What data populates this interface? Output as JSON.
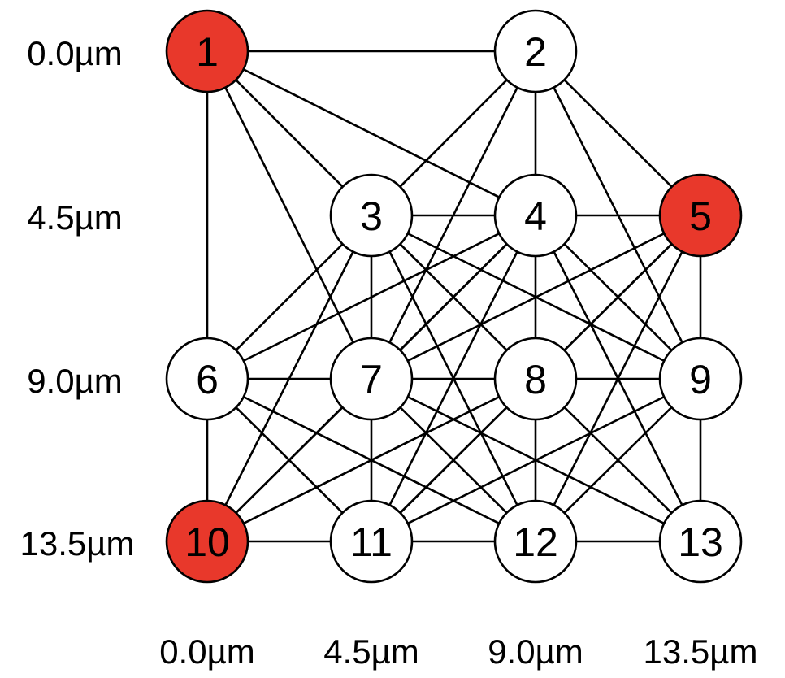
{
  "colors": {
    "highlight": "#e8382b",
    "normal": "#ffffff",
    "stroke": "#000000"
  },
  "grid": {
    "x_um": [
      0.0,
      4.5,
      9.0,
      13.5
    ],
    "y_um": [
      0.0,
      4.5,
      9.0,
      13.5
    ]
  },
  "labels": {
    "x_axis": [
      "0.0µm",
      "4.5µm",
      "9.0µm",
      "13.5µm"
    ],
    "y_axis": [
      "0.0µm",
      "4.5µm",
      "9.0µm",
      "13.5µm"
    ]
  },
  "nodes": [
    {
      "id": "1",
      "label": "1",
      "col": 0,
      "row": 0,
      "highlighted": true
    },
    {
      "id": "2",
      "label": "2",
      "col": 2,
      "row": 0,
      "highlighted": false
    },
    {
      "id": "3",
      "label": "3",
      "col": 1,
      "row": 1,
      "highlighted": false
    },
    {
      "id": "4",
      "label": "4",
      "col": 2,
      "row": 1,
      "highlighted": false
    },
    {
      "id": "5",
      "label": "5",
      "col": 3,
      "row": 1,
      "highlighted": true
    },
    {
      "id": "6",
      "label": "6",
      "col": 0,
      "row": 2,
      "highlighted": false
    },
    {
      "id": "7",
      "label": "7",
      "col": 1,
      "row": 2,
      "highlighted": false
    },
    {
      "id": "8",
      "label": "8",
      "col": 2,
      "row": 2,
      "highlighted": false
    },
    {
      "id": "9",
      "label": "9",
      "col": 3,
      "row": 2,
      "highlighted": false
    },
    {
      "id": "10",
      "label": "10",
      "col": 0,
      "row": 3,
      "highlighted": true
    },
    {
      "id": "11",
      "label": "11",
      "col": 1,
      "row": 3,
      "highlighted": false
    },
    {
      "id": "12",
      "label": "12",
      "col": 2,
      "row": 3,
      "highlighted": false
    },
    {
      "id": "13",
      "label": "13",
      "col": 3,
      "row": 3,
      "highlighted": false
    }
  ],
  "edges": [
    [
      "1",
      "2"
    ],
    [
      "1",
      "3"
    ],
    [
      "1",
      "4"
    ],
    [
      "1",
      "6"
    ],
    [
      "1",
      "7"
    ],
    [
      "2",
      "3"
    ],
    [
      "2",
      "4"
    ],
    [
      "2",
      "5"
    ],
    [
      "2",
      "7"
    ],
    [
      "2",
      "9"
    ],
    [
      "3",
      "4"
    ],
    [
      "3",
      "6"
    ],
    [
      "3",
      "7"
    ],
    [
      "3",
      "8"
    ],
    [
      "3",
      "9"
    ],
    [
      "3",
      "10"
    ],
    [
      "3",
      "12"
    ],
    [
      "4",
      "5"
    ],
    [
      "4",
      "6"
    ],
    [
      "4",
      "7"
    ],
    [
      "4",
      "8"
    ],
    [
      "4",
      "9"
    ],
    [
      "4",
      "10"
    ],
    [
      "4",
      "11"
    ],
    [
      "4",
      "13"
    ],
    [
      "5",
      "7"
    ],
    [
      "5",
      "8"
    ],
    [
      "5",
      "9"
    ],
    [
      "5",
      "11"
    ],
    [
      "5",
      "12"
    ],
    [
      "6",
      "7"
    ],
    [
      "6",
      "10"
    ],
    [
      "6",
      "11"
    ],
    [
      "6",
      "12"
    ],
    [
      "7",
      "8"
    ],
    [
      "7",
      "10"
    ],
    [
      "7",
      "11"
    ],
    [
      "7",
      "12"
    ],
    [
      "7",
      "13"
    ],
    [
      "8",
      "9"
    ],
    [
      "8",
      "10"
    ],
    [
      "8",
      "11"
    ],
    [
      "8",
      "12"
    ],
    [
      "8",
      "13"
    ],
    [
      "9",
      "11"
    ],
    [
      "9",
      "12"
    ],
    [
      "9",
      "13"
    ],
    [
      "10",
      "11"
    ],
    [
      "11",
      "12"
    ],
    [
      "12",
      "13"
    ]
  ]
}
